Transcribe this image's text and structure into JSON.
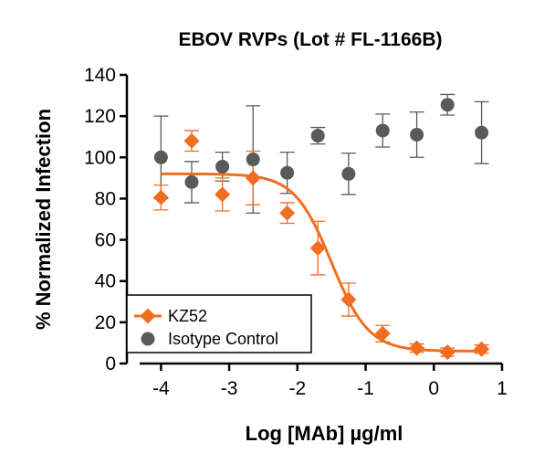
{
  "chart_data": {
    "type": "scatter",
    "title": "EBOV RVPs (Lot # FL-1166B)",
    "xlabel": "Log [MAb] µg/ml",
    "ylabel": "% Normalized Infection",
    "xlim": [
      -4.5,
      1
    ],
    "ylim": [
      0,
      140
    ],
    "xticks": [
      -4,
      -3,
      -2,
      -1,
      0,
      1
    ],
    "yticks": [
      0,
      20,
      40,
      60,
      80,
      100,
      120,
      140
    ],
    "grid": false,
    "legend_position": "bottom-left",
    "series": [
      {
        "name": "KZ52",
        "marker": "diamond",
        "color": "#f26d1f",
        "fit_curve": true,
        "fit": {
          "bottom": 6,
          "top": 92,
          "logIC50": -1.5,
          "hill": -1.6
        },
        "points": [
          {
            "x": -4.0,
            "y": 80.5,
            "err": 6
          },
          {
            "x": -3.55,
            "y": 108,
            "err": 5
          },
          {
            "x": -3.1,
            "y": 82,
            "err": 8
          },
          {
            "x": -2.65,
            "y": 90,
            "err": 13
          },
          {
            "x": -2.15,
            "y": 73,
            "err": 5
          },
          {
            "x": -1.7,
            "y": 56,
            "err": 13
          },
          {
            "x": -1.25,
            "y": 31,
            "err": 8
          },
          {
            "x": -0.75,
            "y": 14.5,
            "err": 4
          },
          {
            "x": -0.25,
            "y": 7.5,
            "err": 2
          },
          {
            "x": 0.2,
            "y": 5.5,
            "err": 2
          },
          {
            "x": 0.7,
            "y": 7,
            "err": 2
          }
        ]
      },
      {
        "name": "Isotype Control",
        "marker": "circle",
        "color": "#5a5a5a",
        "fit_curve": false,
        "points": [
          {
            "x": -4.0,
            "y": 100,
            "err": 20
          },
          {
            "x": -3.55,
            "y": 88,
            "err": 10
          },
          {
            "x": -3.1,
            "y": 95.5,
            "err": 7
          },
          {
            "x": -2.65,
            "y": 99,
            "err": 26
          },
          {
            "x": -2.15,
            "y": 92.5,
            "err": 10
          },
          {
            "x": -1.7,
            "y": 110.5,
            "err": 4
          },
          {
            "x": -1.25,
            "y": 92,
            "err": 10
          },
          {
            "x": -0.75,
            "y": 113,
            "err": 8
          },
          {
            "x": -0.25,
            "y": 111,
            "err": 11
          },
          {
            "x": 0.2,
            "y": 125.5,
            "err": 5
          },
          {
            "x": 0.7,
            "y": 112,
            "err": 15
          }
        ]
      }
    ]
  }
}
